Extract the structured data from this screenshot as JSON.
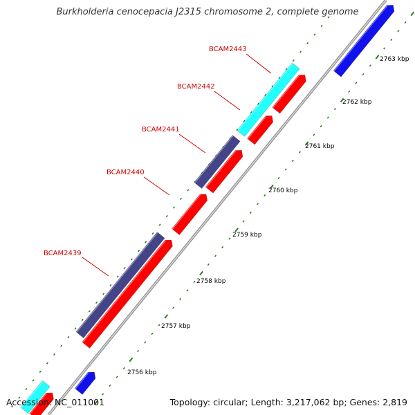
{
  "title": "Burkholderia cenocepacia J2315 chromosome 2, complete genome",
  "accession": "Accession: NC_011001",
  "summary": "Topology: circular; Length: 3,217,062 bp; Genes: 2,819",
  "colors": {
    "backbone": "#999999",
    "tick": "#2e7d1e",
    "kbp_label": "#000000",
    "gene_label": "#cc0000",
    "leader": "#cc0000",
    "cds_red": "#ff0000",
    "cds_cyan": "#22ffff",
    "cds_slate": "#444488",
    "cds_blue": "#1111ee"
  },
  "gene_labels": [
    "BCAM2439",
    "BCAM2440",
    "BCAM2441",
    "BCAM2442",
    "BCAM2443"
  ],
  "kbp_labels": [
    "2756 kbp",
    "2757 kbp",
    "2758 kbp",
    "2759 kbp",
    "2760 kbp",
    "2761 kbp",
    "2762 kbp",
    "2763 kbp"
  ]
}
